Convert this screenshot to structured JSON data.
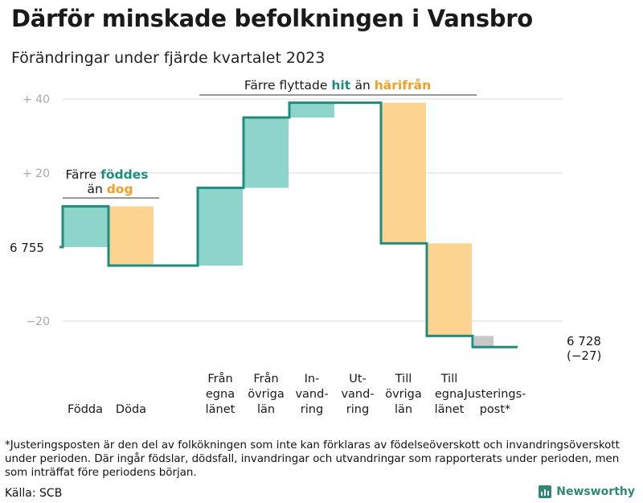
{
  "title": "Därför minskade befolkningen i Vansbro",
  "subtitle": "Förändringar under fjärde kvartalet 2023",
  "footnote": "*Justeringsposten är den del av folkökningen som inte kan förklaras av födelseöverskott och invandringsöverskott under perioden. Där ingår födslar, dödsfall, invandringar och utvandringar som rapporterats under perioden, men som inträffat före periodens början.",
  "source": "Källa: SCB",
  "brand": "Newsworthy",
  "annotations": {
    "birth": {
      "prefix": "Färre",
      "hl1": "föddes",
      "joiner": "än",
      "hl2": "dog"
    },
    "migration": {
      "prefix": "Färre flyttade",
      "hl1": "hit",
      "joiner": "än",
      "hl2": "härifrån"
    }
  },
  "colors": {
    "positive": "#8dd5cb",
    "negative": "#fdd48f",
    "adjustment": "#c8c8c8",
    "line": "#1f8c7d",
    "hit": "#1f8c7d",
    "harifran": "#f0a022",
    "grid": "#d9d9d9"
  },
  "chart_data": {
    "type": "waterfall",
    "start_value": 6755,
    "start_label": "6 755",
    "end_value": 6728,
    "end_label": "6 728",
    "end_change_label": "(−27)",
    "y_ticks": [
      {
        "value": 40,
        "label": "+  40"
      },
      {
        "value": 20,
        "label": "+  20"
      },
      {
        "value": -20,
        "label": "−20"
      }
    ],
    "ylim": [
      -30,
      42
    ],
    "grid": true,
    "steps": [
      {
        "category": [
          "Födda"
        ],
        "change": 11,
        "kind": "positive"
      },
      {
        "category": [
          "Döda"
        ],
        "change": -16,
        "kind": "negative"
      },
      {
        "category": [
          "Från",
          "egna",
          "länet"
        ],
        "change": 21,
        "kind": "positive"
      },
      {
        "category": [
          "Från",
          "övriga",
          "län"
        ],
        "change": 19,
        "kind": "positive"
      },
      {
        "category": [
          "In-",
          "vand-",
          "ring"
        ],
        "change": 4,
        "kind": "positive"
      },
      {
        "category": [
          "Ut-",
          "vand-",
          "ring"
        ],
        "change": 0,
        "kind": "negative"
      },
      {
        "category": [
          "Till",
          "övriga",
          "län"
        ],
        "change": -38,
        "kind": "negative"
      },
      {
        "category": [
          "Till",
          "egna",
          "länet"
        ],
        "change": -25,
        "kind": "negative"
      },
      {
        "category": [
          "Justerings-",
          "post*"
        ],
        "change": -3,
        "kind": "adjustment"
      }
    ]
  }
}
